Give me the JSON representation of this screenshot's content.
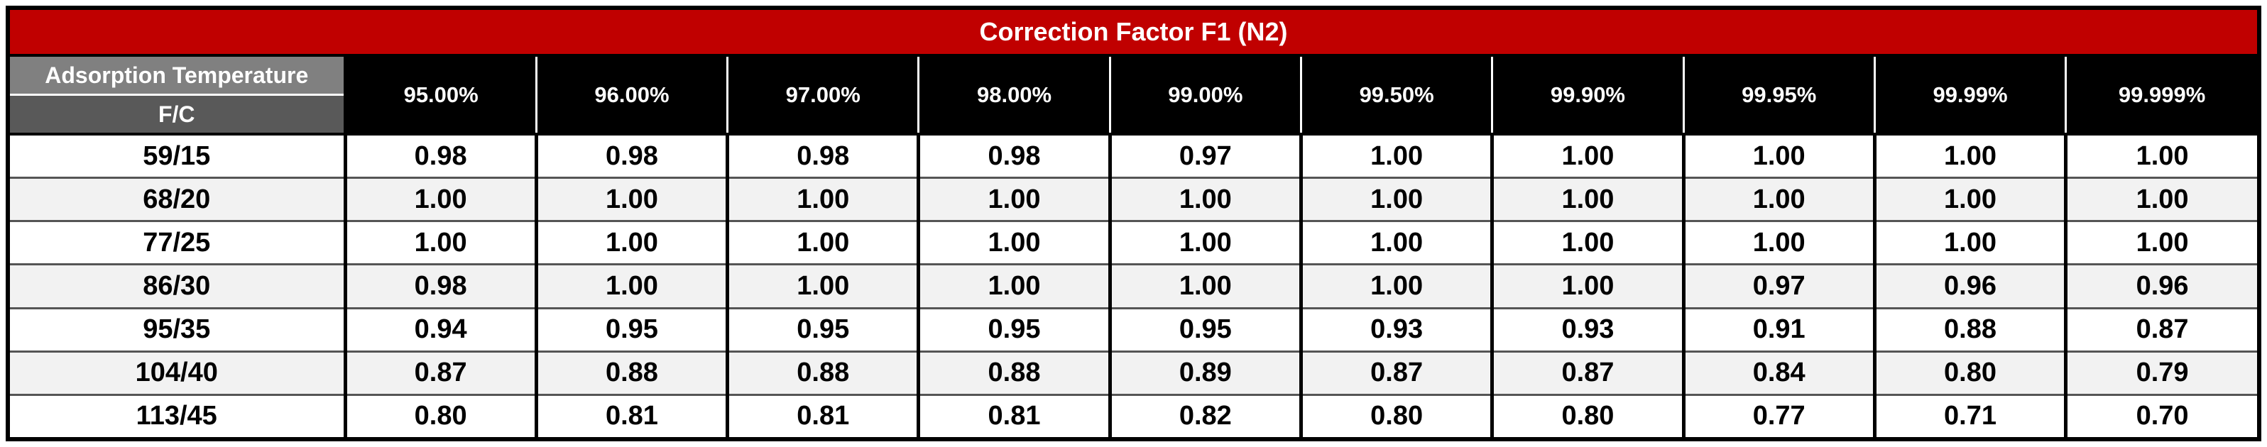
{
  "title": "Correction Factor F1 (N2)",
  "row_header": {
    "top": "Adsorption Temperature",
    "bottom": "F/C"
  },
  "columns": [
    "95.00%",
    "96.00%",
    "97.00%",
    "98.00%",
    "99.00%",
    "99.50%",
    "99.90%",
    "99.95%",
    "99.99%",
    "99.999%"
  ],
  "rows": [
    {
      "label": "59/15",
      "values": [
        "0.98",
        "0.98",
        "0.98",
        "0.98",
        "0.97",
        "1.00",
        "1.00",
        "1.00",
        "1.00",
        "1.00"
      ]
    },
    {
      "label": "68/20",
      "values": [
        "1.00",
        "1.00",
        "1.00",
        "1.00",
        "1.00",
        "1.00",
        "1.00",
        "1.00",
        "1.00",
        "1.00"
      ]
    },
    {
      "label": "77/25",
      "values": [
        "1.00",
        "1.00",
        "1.00",
        "1.00",
        "1.00",
        "1.00",
        "1.00",
        "1.00",
        "1.00",
        "1.00"
      ]
    },
    {
      "label": "86/30",
      "values": [
        "0.98",
        "1.00",
        "1.00",
        "1.00",
        "1.00",
        "1.00",
        "1.00",
        "0.97",
        "0.96",
        "0.96"
      ]
    },
    {
      "label": "95/35",
      "values": [
        "0.94",
        "0.95",
        "0.95",
        "0.95",
        "0.95",
        "0.93",
        "0.93",
        "0.91",
        "0.88",
        "0.87"
      ]
    },
    {
      "label": "104/40",
      "values": [
        "0.87",
        "0.88",
        "0.88",
        "0.88",
        "0.89",
        "0.87",
        "0.87",
        "0.84",
        "0.80",
        "0.79"
      ]
    },
    {
      "label": "113/45",
      "values": [
        "0.80",
        "0.81",
        "0.81",
        "0.81",
        "0.82",
        "0.80",
        "0.80",
        "0.77",
        "0.71",
        "0.70"
      ]
    }
  ],
  "colors": {
    "title_bg": "#c00000",
    "header_bg": "#000000",
    "row_header_top_bg": "#808080",
    "row_header_bottom_bg": "#595959",
    "alt_row_bg": "#f2f2f2"
  }
}
